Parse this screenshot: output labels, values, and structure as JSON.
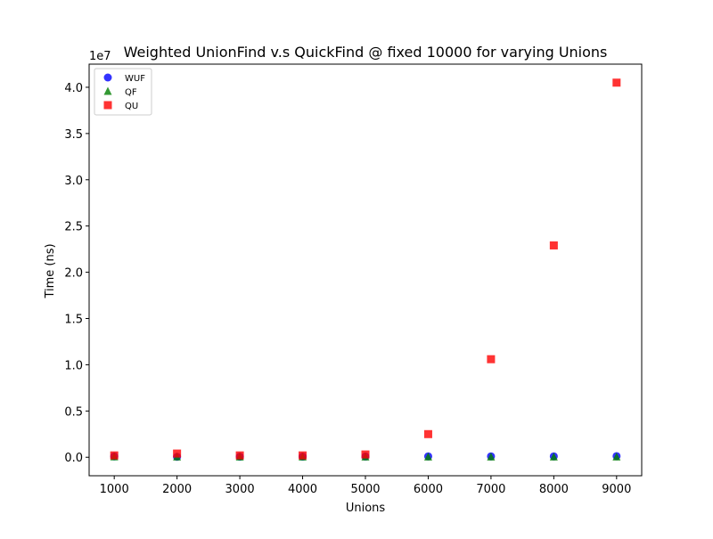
{
  "chart_data": {
    "type": "scatter",
    "title": "Weighted UnionFind v.s QuickFind @ fixed 10000 for varying Unions",
    "xlabel": "Unions",
    "ylabel": "Time (ns)",
    "y_offset_label": "1e7",
    "xlim": [
      600,
      9400
    ],
    "ylim": [
      -2000000,
      42500000
    ],
    "xticks": [
      1000,
      2000,
      3000,
      4000,
      5000,
      6000,
      7000,
      8000,
      9000
    ],
    "yticks": [
      0,
      5000000,
      10000000,
      15000000,
      20000000,
      25000000,
      30000000,
      35000000,
      40000000
    ],
    "ytick_labels": [
      "0.0",
      "0.5",
      "1.0",
      "1.5",
      "2.0",
      "2.5",
      "3.0",
      "3.5",
      "4.0"
    ],
    "grid": false,
    "legend_position": "top-left",
    "series": [
      {
        "name": "WUF",
        "marker": "circle",
        "color": "#0000ff",
        "x": [
          1000,
          2000,
          3000,
          4000,
          5000,
          6000,
          7000,
          8000,
          9000
        ],
        "y": [
          100000,
          50000,
          60000,
          70000,
          80000,
          100000,
          100000,
          100000,
          120000
        ]
      },
      {
        "name": "QF",
        "marker": "triangle",
        "color": "#008000",
        "x": [
          1000,
          2000,
          3000,
          4000,
          5000,
          6000,
          7000,
          8000,
          9000
        ],
        "y": [
          50000,
          30000,
          30000,
          30000,
          30000,
          30000,
          30000,
          30000,
          30000
        ]
      },
      {
        "name": "QU",
        "marker": "square",
        "color": "#ff0000",
        "x": [
          1000,
          2000,
          3000,
          4000,
          5000,
          6000,
          7000,
          8000,
          9000
        ],
        "y": [
          200000,
          400000,
          200000,
          200000,
          300000,
          2500000,
          10600000,
          22900000,
          40500000
        ]
      }
    ]
  }
}
